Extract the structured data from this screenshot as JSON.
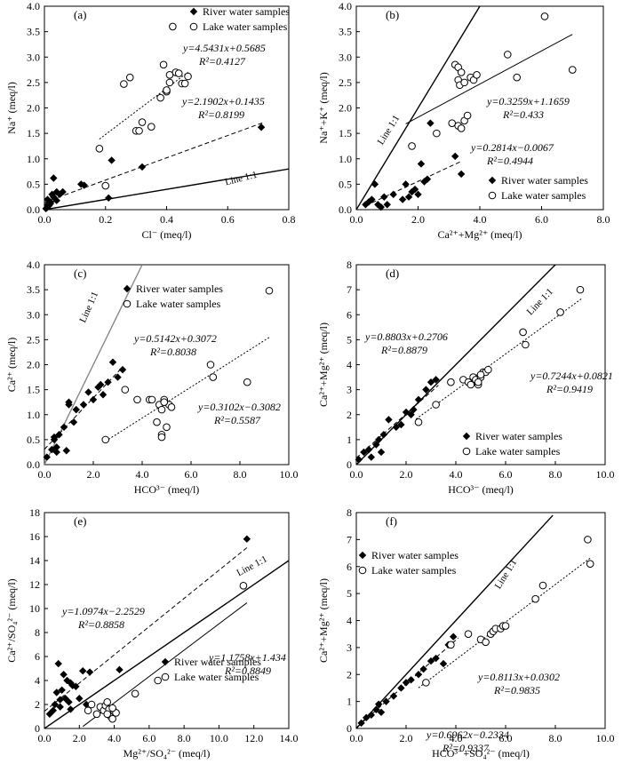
{
  "chart_data": [
    {
      "panel": "(a)",
      "type": "scatter",
      "xlabel": "Cl⁻ (meq/l)",
      "ylabel": "Na⁺ (meq/l)",
      "xlim": [
        0,
        0.8
      ],
      "ylim": [
        0,
        4.0
      ],
      "xticks": [
        "0.0",
        "0.2",
        "0.4",
        "0.6",
        "0.8"
      ],
      "yticks": [
        "0.0",
        "0.5",
        "1.0",
        "1.5",
        "2.0",
        "2.5",
        "3.0",
        "3.5",
        "4.0"
      ],
      "legend_position": "top-right",
      "series": [
        {
          "name": "River water samples",
          "marker": "diamond",
          "x": [
            0.005,
            0.01,
            0.01,
            0.015,
            0.02,
            0.025,
            0.03,
            0.03,
            0.04,
            0.04,
            0.05,
            0.06,
            0.12,
            0.13,
            0.21,
            0.22,
            0.32,
            0.71,
            0.01,
            0.02
          ],
          "y": [
            0.02,
            0.05,
            0.1,
            0.08,
            0.15,
            0.3,
            0.25,
            0.62,
            0.35,
            0.18,
            0.3,
            0.35,
            0.5,
            0.48,
            0.23,
            0.97,
            0.84,
            1.62,
            0.2,
            0.12
          ]
        },
        {
          "name": "Lake water samples",
          "marker": "circle",
          "x": [
            0.18,
            0.2,
            0.26,
            0.28,
            0.3,
            0.31,
            0.32,
            0.35,
            0.38,
            0.39,
            0.4,
            0.4,
            0.41,
            0.41,
            0.42,
            0.43,
            0.44,
            0.45,
            0.46,
            0.47
          ],
          "y": [
            1.2,
            0.47,
            2.47,
            2.6,
            1.55,
            1.55,
            1.72,
            1.63,
            2.2,
            2.85,
            2.32,
            2.35,
            2.5,
            2.65,
            3.6,
            2.7,
            2.68,
            2.48,
            2.48,
            2.62
          ]
        }
      ],
      "fits": [
        {
          "label": "River",
          "equation": "y=2.1902x+0.1435",
          "r2": "R²=0.8199",
          "slope": 2.1902,
          "intercept": 0.1435,
          "range": [
            0,
            0.72
          ],
          "style": "dashed"
        },
        {
          "label": "Lake",
          "equation": "y=4.5431x+0.5685",
          "r2": "R²=0.4127",
          "slope": 4.5431,
          "intercept": 0.5685,
          "range": [
            0.18,
            0.47
          ],
          "style": "dotted"
        }
      ],
      "line11": {
        "label": "Line 1:1",
        "x": [
          0,
          0.8
        ]
      }
    },
    {
      "panel": "(b)",
      "type": "scatter",
      "xlabel": "Ca²⁺+Mg²⁺ (meq/l)",
      "ylabel": "Na⁺+K⁺ (meq/l)",
      "xlim": [
        0,
        8.0
      ],
      "ylim": [
        0,
        4.0
      ],
      "xticks": [
        "0.0",
        "2.0",
        "4.0",
        "6.0",
        "8.0"
      ],
      "yticks": [
        "0.0",
        "0.5",
        "1.0",
        "1.5",
        "2.0",
        "2.5",
        "3.0",
        "3.5",
        "4.0"
      ],
      "legend_position": "bottom-right",
      "series": [
        {
          "name": "River water samples",
          "marker": "diamond",
          "x": [
            0.3,
            0.4,
            0.5,
            0.6,
            0.7,
            0.9,
            1.0,
            1.2,
            1.5,
            1.6,
            1.7,
            1.8,
            1.9,
            2.0,
            2.1,
            2.2,
            2.3,
            2.4,
            3.2,
            3.4,
            0.8
          ],
          "y": [
            0.1,
            0.15,
            0.2,
            0.5,
            0.1,
            0.25,
            0.1,
            0.3,
            0.2,
            0.5,
            0.25,
            0.35,
            0.4,
            0.3,
            0.9,
            0.55,
            0.6,
            1.7,
            1.05,
            0.7,
            0.05
          ]
        },
        {
          "name": "Lake water samples",
          "marker": "circle",
          "x": [
            1.8,
            2.6,
            3.1,
            3.2,
            3.3,
            3.3,
            3.35,
            3.4,
            3.5,
            3.5,
            3.6,
            3.7,
            3.8,
            3.9,
            4.9,
            5.2,
            6.1,
            7.0,
            3.3,
            3.4
          ],
          "y": [
            1.25,
            1.5,
            1.7,
            2.85,
            2.55,
            2.8,
            2.45,
            2.7,
            1.75,
            2.5,
            1.85,
            2.6,
            2.55,
            2.65,
            3.05,
            2.6,
            3.8,
            2.75,
            1.65,
            1.6
          ]
        }
      ],
      "fits": [
        {
          "label": "River",
          "equation": "y=0.2814x−0.0067",
          "r2": "R²=0.4944",
          "slope": 0.2814,
          "intercept": -0.0067,
          "range": [
            0.3,
            3.4
          ],
          "style": "dashed"
        },
        {
          "label": "Lake",
          "equation": "y=0.3259x+1.1659",
          "r2": "R²=0.433",
          "slope": 0.3259,
          "intercept": 1.1659,
          "range": [
            1.6,
            7.0
          ],
          "style": "solid-thin"
        }
      ],
      "line11": {
        "label": "Line 1:1",
        "x": [
          0,
          4.0
        ]
      }
    },
    {
      "panel": "(c)",
      "type": "scatter",
      "xlabel": "HCO³⁻ (meq/l)",
      "ylabel": "Ca²⁺ (meq/l)",
      "xlim": [
        0,
        10.0
      ],
      "ylim": [
        0,
        4.0
      ],
      "xticks": [
        "0.0",
        "2.0",
        "4.0",
        "6.0",
        "8.0",
        "10.0"
      ],
      "yticks": [
        "0.0",
        "0.5",
        "1.0",
        "1.5",
        "2.0",
        "2.5",
        "3.0",
        "3.5",
        "4.0"
      ],
      "legend_position": "top-left",
      "series": [
        {
          "name": "River water samples",
          "marker": "diamond",
          "x": [
            0.1,
            0.3,
            0.4,
            0.5,
            0.5,
            0.6,
            0.8,
            0.9,
            1.0,
            1.0,
            1.2,
            1.3,
            1.6,
            1.8,
            2.0,
            2.2,
            2.3,
            2.4,
            2.6,
            2.8,
            3.0,
            3.2,
            0.4
          ],
          "y": [
            0.15,
            0.3,
            0.5,
            0.25,
            0.35,
            0.6,
            0.75,
            0.28,
            1.2,
            1.25,
            0.85,
            1.1,
            1.2,
            1.45,
            1.3,
            1.55,
            1.6,
            1.4,
            1.65,
            2.05,
            1.75,
            1.9,
            0.55
          ]
        },
        {
          "name": "Lake water samples",
          "marker": "circle",
          "x": [
            2.5,
            3.3,
            3.8,
            4.3,
            4.4,
            4.6,
            4.7,
            4.8,
            4.8,
            4.9,
            5.0,
            5.1,
            5.2,
            6.8,
            6.9,
            8.3,
            9.2,
            4.8,
            4.9
          ],
          "y": [
            0.5,
            1.5,
            1.3,
            1.3,
            1.3,
            0.85,
            1.2,
            1.1,
            0.6,
            1.3,
            0.75,
            1.2,
            1.15,
            2.0,
            1.75,
            1.65,
            3.48,
            0.55,
            1.25
          ]
        }
      ],
      "fits": [
        {
          "label": "River",
          "equation": "y=0.5142x+0.3072",
          "r2": "R²=0.8038",
          "slope": 0.5142,
          "intercept": 0.3072,
          "range": [
            0,
            3.2
          ],
          "style": "dashed"
        },
        {
          "label": "Lake",
          "equation": "y=0.3102x−0.3082",
          "r2": "R²=0.5587",
          "slope": 0.3102,
          "intercept": -0.3082,
          "range": [
            2.5,
            9.2
          ],
          "style": "dotted"
        }
      ],
      "line11": {
        "label": "Line 1:1",
        "x": [
          0,
          4.0
        ]
      }
    },
    {
      "panel": "(d)",
      "type": "scatter",
      "xlabel": "HCO³⁻ (meq/l)",
      "ylabel": "Ca²⁺+Mg²⁺ (meq/l)",
      "xlim": [
        0,
        10.0
      ],
      "ylim": [
        0,
        8
      ],
      "xticks": [
        "0.0",
        "2.0",
        "4.0",
        "6.0",
        "8.0",
        "10.0"
      ],
      "yticks": [
        "0",
        "1",
        "2",
        "3",
        "4",
        "5",
        "6",
        "7",
        "8"
      ],
      "legend_position": "bottom-right",
      "series": [
        {
          "name": "River water samples",
          "marker": "diamond",
          "x": [
            0.1,
            0.3,
            0.5,
            0.6,
            0.8,
            0.9,
            1.0,
            1.1,
            1.3,
            1.6,
            1.8,
            2.0,
            2.2,
            2.3,
            2.5,
            2.8,
            3.0,
            3.2,
            3.2
          ],
          "y": [
            0.2,
            0.5,
            0.6,
            0.3,
            0.8,
            1.0,
            0.5,
            1.2,
            1.8,
            1.5,
            1.6,
            2.1,
            2.0,
            2.2,
            2.6,
            3.0,
            3.3,
            2.4,
            3.4
          ]
        },
        {
          "name": "Lake water samples",
          "marker": "circle",
          "x": [
            2.5,
            3.2,
            3.8,
            4.3,
            4.5,
            4.6,
            4.7,
            4.8,
            4.9,
            5.0,
            5.1,
            5.2,
            5.3,
            6.7,
            6.8,
            8.2,
            9.0,
            4.9,
            5.0
          ],
          "y": [
            1.7,
            2.4,
            3.3,
            3.4,
            3.3,
            3.2,
            3.5,
            3.4,
            3.2,
            3.5,
            3.7,
            3.7,
            3.8,
            5.3,
            4.8,
            6.1,
            7.0,
            3.3,
            3.6
          ]
        }
      ],
      "fits": [
        {
          "label": "River",
          "equation": "y=0.8803x+0.2706",
          "r2": "R²=0.8879",
          "slope": 0.8803,
          "intercept": 0.2706,
          "range": [
            0,
            3.3
          ],
          "style": "dashed"
        },
        {
          "label": "Lake",
          "equation": "y=0.7244x+0.0821",
          "r2": "R²=0.9419",
          "slope": 0.7244,
          "intercept": 0.0821,
          "range": [
            2.4,
            9.1
          ],
          "style": "dotted"
        }
      ],
      "line11": {
        "label": "Line 1:1",
        "x": [
          0,
          8.0
        ]
      }
    },
    {
      "panel": "(e)",
      "type": "scatter",
      "xlabel": "Mg²⁺/SO₄²⁻ (meq/l)",
      "ylabel": "Ca²⁺/SO₄²⁻ (meq/l)",
      "xlim": [
        0,
        14.0
      ],
      "ylim": [
        0,
        18
      ],
      "xticks": [
        "0.0",
        "2.0",
        "4.0",
        "6.0",
        "8.0",
        "10.0",
        "12.0",
        "14.0"
      ],
      "yticks": [
        "0",
        "2",
        "4",
        "6",
        "8",
        "10",
        "12",
        "14",
        "16",
        "18"
      ],
      "legend_position": "bottom-right",
      "series": [
        {
          "name": "River water samples",
          "marker": "diamond",
          "x": [
            0.3,
            0.5,
            0.6,
            0.7,
            0.8,
            0.9,
            1.0,
            1.1,
            1.2,
            1.3,
            1.4,
            1.5,
            1.6,
            1.8,
            2.0,
            2.2,
            2.4,
            2.6,
            4.3,
            11.6,
            0.9,
            1.5
          ],
          "y": [
            1.2,
            1.5,
            2.0,
            3.0,
            5.4,
            1.8,
            3.2,
            4.5,
            2.5,
            4.0,
            2.2,
            3.8,
            3.6,
            3.5,
            2.5,
            4.8,
            2.0,
            4.7,
            4.9,
            15.8,
            2.4,
            1.6
          ]
        },
        {
          "name": "Lake water samples",
          "marker": "circle",
          "x": [
            2.5,
            2.7,
            3.0,
            3.2,
            3.4,
            3.5,
            3.6,
            3.7,
            3.8,
            3.9,
            4.0,
            4.1,
            5.2,
            6.5,
            11.4,
            3.6,
            3.9
          ],
          "y": [
            1.5,
            2.0,
            1.2,
            1.8,
            1.5,
            1.9,
            2.2,
            1.6,
            1.0,
            0.8,
            1.4,
            1.3,
            2.9,
            4.0,
            11.9,
            1.2,
            1.7
          ]
        }
      ],
      "fits": [
        {
          "label": "River",
          "equation": "y=1.0974x−2.2529",
          "r2": "R²=0.8858",
          "slope": 1.0974,
          "intercept": -2.2529,
          "range": [
            2.2,
            11.6
          ],
          "style": "solid-thin"
        },
        {
          "label": "Lake",
          "equation": "y=1.1758x+1.434",
          "r2": "R²=0.8849",
          "slope": 1.1758,
          "intercept": 1.434,
          "range": [
            0,
            11.6
          ],
          "style": "dashed"
        }
      ],
      "line11": {
        "label": "Line 1:1",
        "x": [
          0,
          14.0
        ]
      }
    },
    {
      "panel": "(f)",
      "type": "scatter",
      "xlabel": "HCO³⁻+SO₄²⁻ (meq/l)",
      "ylabel": "Ca²⁺+Mg²⁺ (meq/l)",
      "xlim": [
        0,
        10.0
      ],
      "ylim": [
        0,
        8
      ],
      "xticks": [
        "0.0",
        "2.0",
        "4.0",
        "6.0",
        "8.0",
        "10.0"
      ],
      "yticks": [
        "0",
        "1",
        "2",
        "3",
        "4",
        "5",
        "6",
        "7",
        "8"
      ],
      "legend_position": "top-left",
      "series": [
        {
          "name": "River water samples",
          "marker": "diamond",
          "x": [
            0.2,
            0.4,
            0.6,
            0.8,
            0.9,
            1.0,
            1.2,
            1.5,
            1.8,
            2.0,
            2.2,
            2.5,
            2.7,
            3.0,
            3.2,
            3.5,
            3.7,
            3.9
          ],
          "y": [
            0.2,
            0.4,
            0.5,
            0.7,
            0.9,
            0.6,
            1.0,
            1.2,
            1.5,
            1.7,
            1.8,
            2.0,
            2.2,
            2.5,
            2.6,
            2.4,
            3.1,
            3.4
          ]
        },
        {
          "name": "Lake water samples",
          "marker": "circle",
          "x": [
            2.8,
            3.8,
            4.5,
            5.0,
            5.2,
            5.4,
            5.5,
            5.6,
            5.8,
            5.9,
            6.0,
            7.2,
            7.5,
            9.3,
            9.4
          ],
          "y": [
            1.7,
            3.1,
            3.5,
            3.3,
            3.2,
            3.5,
            3.6,
            3.7,
            3.7,
            3.8,
            3.8,
            4.8,
            5.3,
            7.0,
            6.1
          ]
        }
      ],
      "fits": [
        {
          "label": "River",
          "equation": "y=0.8113x+0.0302",
          "r2": "R²=0.9835",
          "slope": 0.8113,
          "intercept": 0.0302,
          "range": [
            0,
            4.1
          ],
          "style": "dashed"
        },
        {
          "label": "Lake",
          "equation": "y=0.6962x−0.2334",
          "r2": "R²=0.9337",
          "slope": 0.6962,
          "intercept": -0.2334,
          "range": [
            2.5,
            9.4
          ],
          "style": "dotted"
        }
      ],
      "line11": {
        "label": "Line 1:1",
        "x": [
          0,
          7.9
        ]
      }
    }
  ]
}
